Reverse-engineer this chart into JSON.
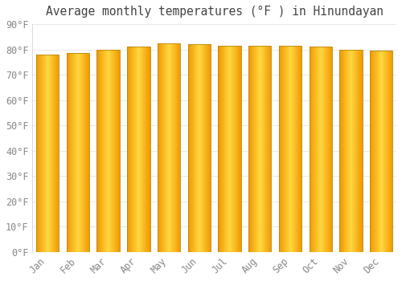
{
  "title": "Average monthly temperatures (°F ) in Hinundayan",
  "months": [
    "Jan",
    "Feb",
    "Mar",
    "Apr",
    "May",
    "Jun",
    "Jul",
    "Aug",
    "Sep",
    "Oct",
    "Nov",
    "Dec"
  ],
  "values": [
    78,
    78.5,
    80,
    81,
    82.5,
    82,
    81.5,
    81.5,
    81.5,
    81,
    80,
    79.5
  ],
  "ylim": [
    0,
    90
  ],
  "ytick_step": 10,
  "background_color": "#FFFFFF",
  "grid_color": "#E8E8E8",
  "title_fontsize": 10.5,
  "tick_fontsize": 8.5,
  "title_color": "#444444",
  "tick_color": "#888888",
  "bar_color_center": "#FFD740",
  "bar_color_edge": "#F5A000",
  "bar_border_color": "#B8860B",
  "bar_width": 0.75
}
